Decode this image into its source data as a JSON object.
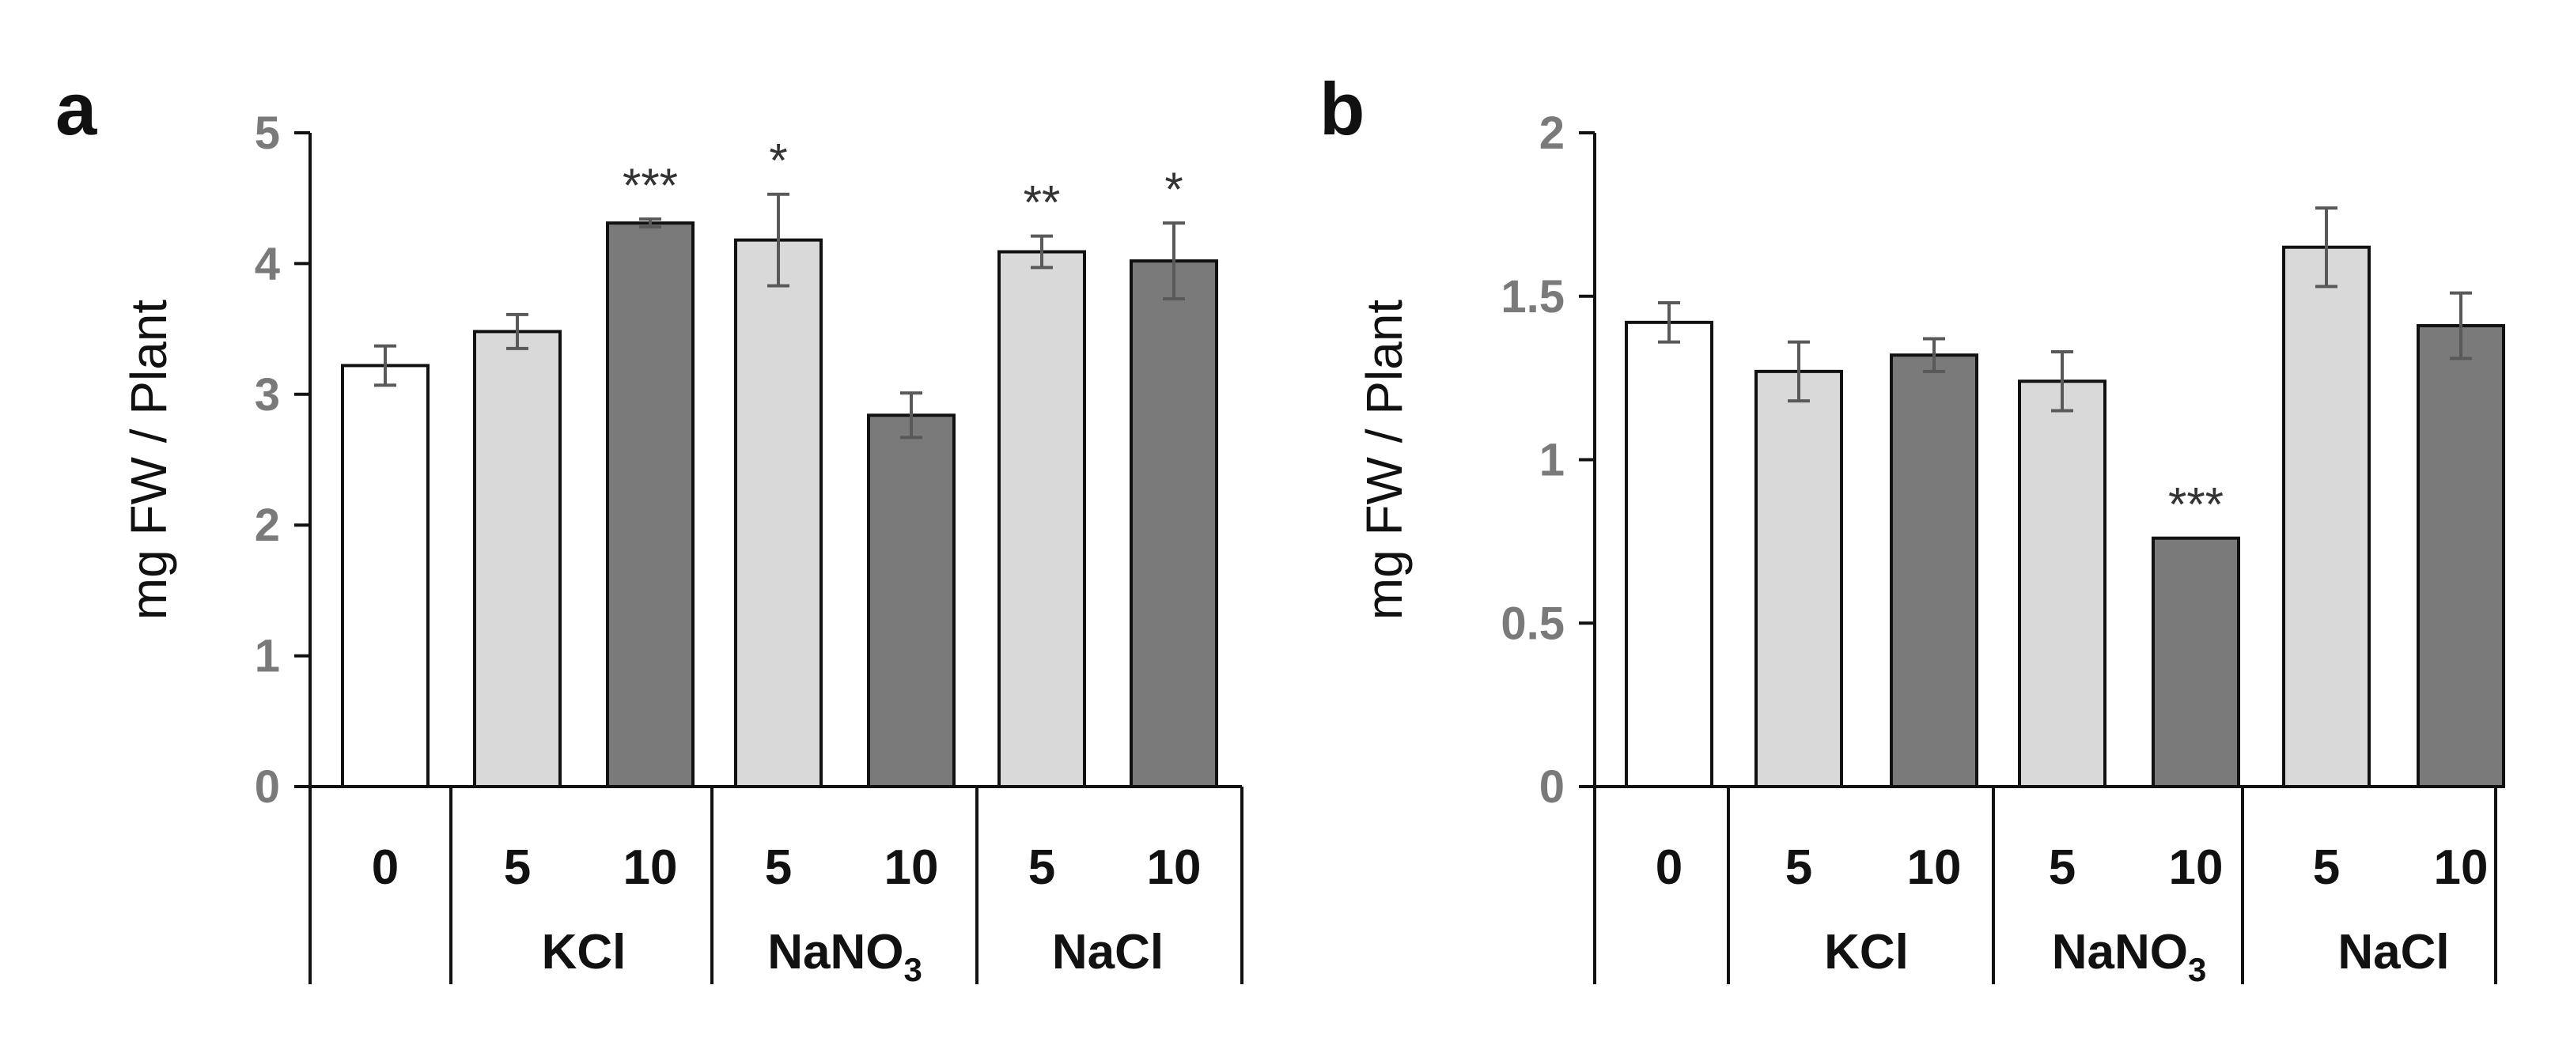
{
  "colors": {
    "control": "#ffffff",
    "dose5": "#d9d9d9",
    "dose10": "#7a7a7a",
    "edge": "#111111",
    "error": "#595959"
  },
  "chart_data": [
    {
      "type": "bar",
      "panel": "a",
      "ylabel": "mg FW / Plant",
      "ylim": [
        0,
        5
      ],
      "yticks": [
        "0",
        "1",
        "2",
        "3",
        "4",
        "5"
      ],
      "categories": [
        "0",
        "5",
        "10",
        "5",
        "10",
        "5",
        "10"
      ],
      "fill": [
        "control",
        "dose5",
        "dose10",
        "dose5",
        "dose10",
        "dose5",
        "dose10"
      ],
      "values": [
        3.22,
        3.48,
        4.31,
        4.18,
        2.84,
        4.09,
        4.02
      ],
      "errors": [
        0.15,
        0.13,
        0.03,
        0.35,
        0.17,
        0.12,
        0.29
      ],
      "significance": [
        "",
        "",
        "***",
        "*",
        "",
        "**",
        "*"
      ],
      "groups": [
        {
          "label": "KCl",
          "sub": "",
          "bars": [
            1,
            2
          ]
        },
        {
          "label": "NaNO",
          "sub": "3",
          "bars": [
            3,
            4
          ]
        },
        {
          "label": "NaCl",
          "sub": "",
          "bars": [
            5,
            6
          ]
        }
      ]
    },
    {
      "type": "bar",
      "panel": "b",
      "ylabel": "mg FW / Plant",
      "ylim": [
        0,
        2
      ],
      "yticks": [
        "0",
        "0.5",
        "1",
        "1.5",
        "2"
      ],
      "categories": [
        "0",
        "5",
        "10",
        "5",
        "10",
        "5",
        "10"
      ],
      "fill": [
        "control",
        "dose5",
        "dose10",
        "dose5",
        "dose10",
        "dose5",
        "dose10"
      ],
      "values": [
        1.42,
        1.27,
        1.32,
        1.24,
        0.76,
        1.65,
        1.41
      ],
      "errors": [
        0.06,
        0.09,
        0.05,
        0.09,
        0.0,
        0.12,
        0.1
      ],
      "significance": [
        "",
        "",
        "",
        "",
        "***",
        "",
        ""
      ],
      "groups": [
        {
          "label": "KCl",
          "sub": "",
          "bars": [
            1,
            2
          ]
        },
        {
          "label": "NaNO",
          "sub": "3",
          "bars": [
            3,
            4
          ]
        },
        {
          "label": "NaCl",
          "sub": "",
          "bars": [
            5,
            6
          ]
        }
      ]
    }
  ]
}
